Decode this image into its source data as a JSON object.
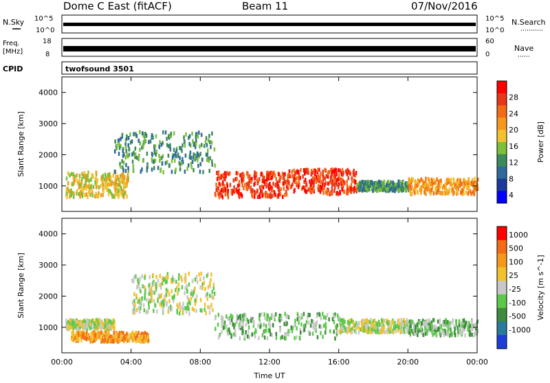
{
  "header": {
    "station": "Dome C East (fitACF)",
    "beam": "Beam 11",
    "date": "07/Nov/2016"
  },
  "top_panels": {
    "nsky_label": "N.Sky",
    "nsky_ticks": [
      "10^5",
      "10^0"
    ],
    "nsearch_label": "N.Search",
    "nsearch_ticks": [
      "10^5",
      "10^0"
    ],
    "freq_label": "Freq.",
    "freq_unit": "[MHz]",
    "freq_ticks": [
      "18",
      "8"
    ],
    "nave_label": "Nave",
    "nave_ticks": [
      "60",
      "0"
    ],
    "cpid_label": "CPID",
    "cpid_value": "twofsound 3501"
  },
  "chart_data": [
    {
      "type": "heatmap",
      "name": "power-panel",
      "ylabel": "Slant Range [km]",
      "xlabel": "Time UT",
      "x_ticks": [
        "00:00",
        "04:00",
        "08:00",
        "12:00",
        "16:00",
        "20:00",
        "00:00"
      ],
      "x_hours": [
        0,
        4,
        8,
        12,
        16,
        20,
        24
      ],
      "y_ticks": [
        1000,
        2000,
        3000,
        4000
      ],
      "ylim": [
        180,
        4500
      ],
      "xlim": [
        0,
        24
      ],
      "colorbar": {
        "label": "Power [dB]",
        "ticks": [
          "4",
          "8",
          "12",
          "16",
          "20",
          "24",
          "28"
        ],
        "colors": [
          "#0000ff",
          "#1a3a9c",
          "#2f6a9a",
          "#3d8a5a",
          "#7cbf3a",
          "#f2c12e",
          "#f39a1e",
          "#f36b14",
          "#e8361a",
          "#ff0000"
        ]
      },
      "regions": [
        {
          "t0": 0.2,
          "t1": 3.8,
          "r0": 700,
          "r1": 1500,
          "level": 5
        },
        {
          "t0": 3.0,
          "t1": 8.8,
          "r0": 1500,
          "r1": 2800,
          "level": 3
        },
        {
          "t0": 8.8,
          "t1": 13.0,
          "r0": 700,
          "r1": 1500,
          "level": 8
        },
        {
          "t0": 13.0,
          "t1": 17.0,
          "r0": 800,
          "r1": 1600,
          "level": 8
        },
        {
          "t0": 17.0,
          "t1": 20.0,
          "r0": 900,
          "r1": 1200,
          "level": 3
        },
        {
          "t0": 20.0,
          "t1": 24.0,
          "r0": 800,
          "r1": 1300,
          "level": 6
        }
      ]
    },
    {
      "type": "heatmap",
      "name": "velocity-panel",
      "ylabel": "Slant Range [km]",
      "xlabel": "Time UT",
      "x_ticks": [
        "00:00",
        "04:00",
        "08:00",
        "12:00",
        "16:00",
        "20:00",
        "00:00"
      ],
      "x_hours": [
        0,
        4,
        8,
        12,
        16,
        20,
        24
      ],
      "y_ticks": [
        1000,
        2000,
        3000,
        4000
      ],
      "ylim": [
        180,
        4500
      ],
      "xlim": [
        0,
        24
      ],
      "colorbar": {
        "label": "Velocity [m s^-1]",
        "ticks": [
          "1000",
          "500",
          "100",
          "25",
          "-25",
          "-100",
          "-500",
          "-1000"
        ],
        "colors": [
          "#1e3cd8",
          "#2a7a9a",
          "#3f8a3f",
          "#5cc94a",
          "#c8c8c8",
          "#f2c12e",
          "#f39a1e",
          "#f36b14",
          "#ff0000"
        ]
      },
      "regions": [
        {
          "t0": 0.2,
          "t1": 3.0,
          "r0": 1000,
          "r1": 1300,
          "level": 4
        },
        {
          "t0": 0.5,
          "t1": 5.0,
          "r0": 600,
          "r1": 900,
          "level": 6
        },
        {
          "t0": 4.0,
          "t1": 8.8,
          "r0": 1500,
          "r1": 2800,
          "level": 4
        },
        {
          "t0": 8.8,
          "t1": 16.0,
          "r0": 700,
          "r1": 1500,
          "level": 3
        },
        {
          "t0": 16.0,
          "t1": 20.0,
          "r0": 900,
          "r1": 1300,
          "level": 4
        },
        {
          "t0": 20.0,
          "t1": 24.0,
          "r0": 800,
          "r1": 1300,
          "level": 3
        }
      ]
    }
  ]
}
